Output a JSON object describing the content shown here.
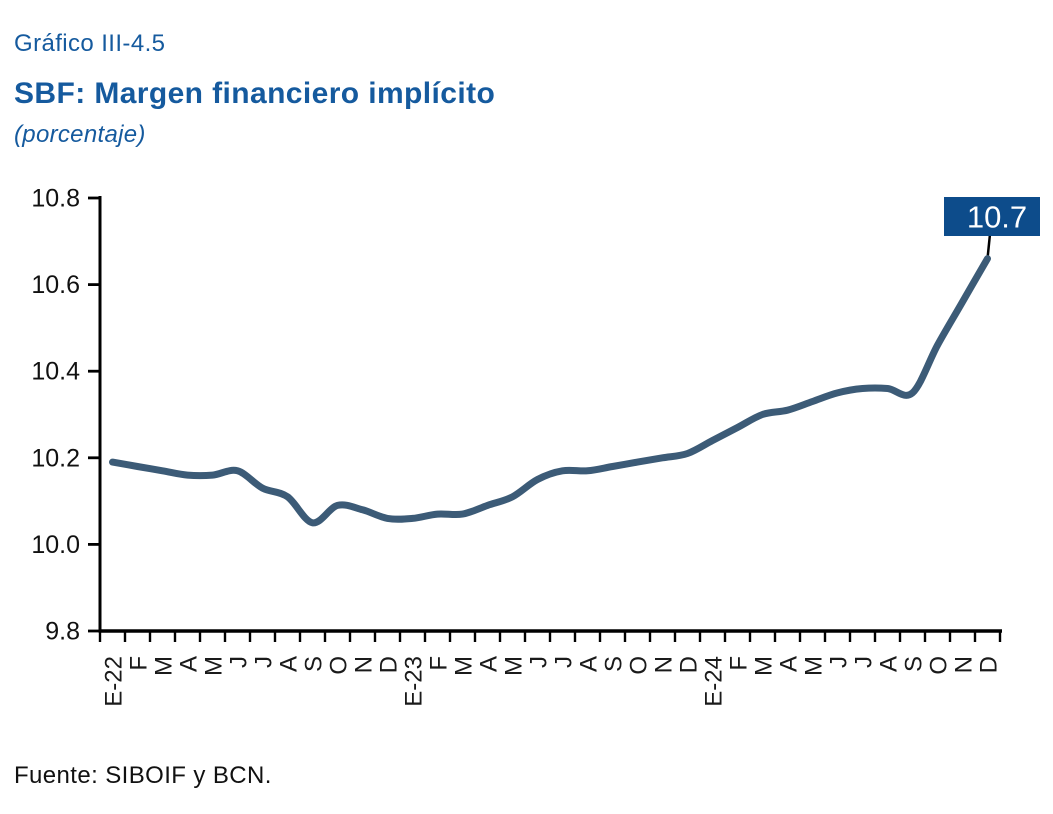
{
  "header": {
    "figure_label": "Gráfico III-4.5",
    "title": "SBF: Margen financiero implícito",
    "subtitle": "(porcentaje)"
  },
  "footer": {
    "source": "Fuente: SIBOIF y BCN."
  },
  "colors": {
    "heading_blue": "#155A9E",
    "label_box_blue": "#0D4C8B",
    "line_blue": "#3C5B77",
    "axis_black": "#000000",
    "tick_label_black": "#111111"
  },
  "chart_data": {
    "type": "line",
    "title": "SBF: Margen financiero implícito",
    "subtitle": "(porcentaje)",
    "categories": [
      "E-22",
      "F",
      "M",
      "A",
      "M",
      "J",
      "J",
      "A",
      "S",
      "O",
      "N",
      "D",
      "E-23",
      "F",
      "M",
      "A",
      "M",
      "J",
      "J",
      "A",
      "S",
      "O",
      "N",
      "D",
      "E-24",
      "F",
      "M",
      "A",
      "M",
      "J",
      "J",
      "A",
      "S",
      "O",
      "N",
      "D"
    ],
    "values": [
      10.19,
      10.18,
      10.17,
      10.16,
      10.16,
      10.17,
      10.13,
      10.11,
      10.05,
      10.09,
      10.08,
      10.06,
      10.06,
      10.07,
      10.07,
      10.09,
      10.11,
      10.15,
      10.17,
      10.17,
      10.18,
      10.19,
      10.2,
      10.21,
      10.24,
      10.27,
      10.3,
      10.31,
      10.33,
      10.35,
      10.36,
      10.36,
      10.35,
      10.46,
      10.56,
      10.66
    ],
    "ylim": [
      9.8,
      10.8
    ],
    "yticks": [
      9.8,
      10.0,
      10.2,
      10.4,
      10.6,
      10.8
    ],
    "xlabel": "",
    "ylabel": "",
    "grid": false,
    "legend": false,
    "end_label": "10.7",
    "source": "Fuente: SIBOIF y BCN."
  }
}
